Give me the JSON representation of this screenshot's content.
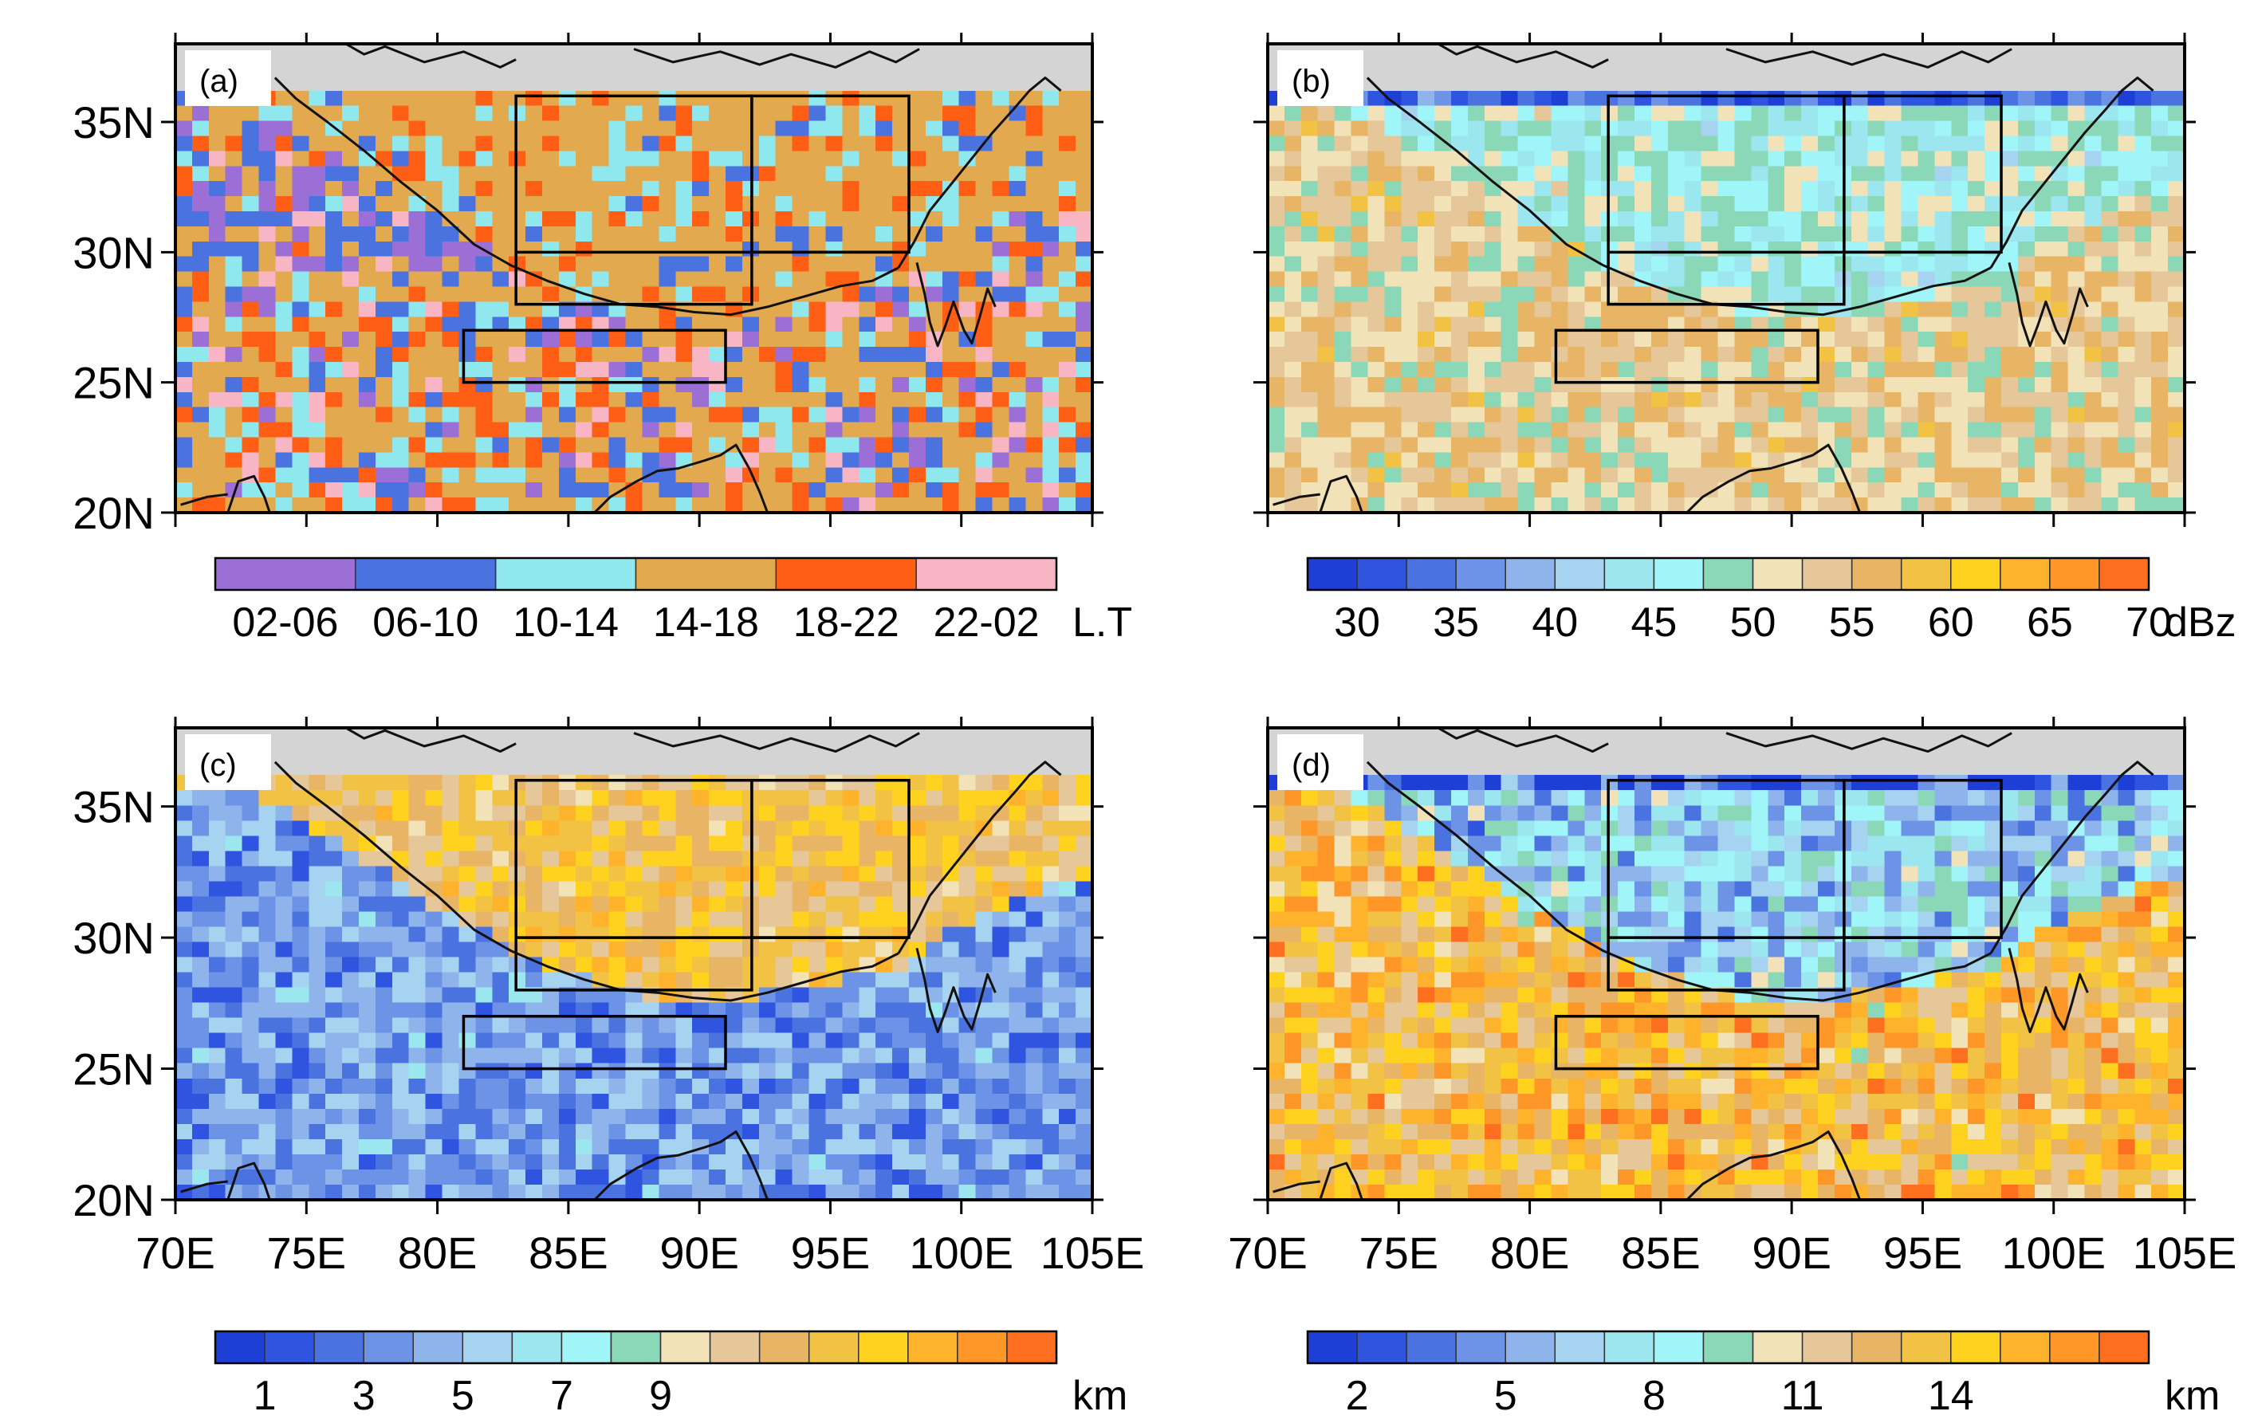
{
  "map_extent": {
    "lon": [
      70,
      105
    ],
    "lat": [
      20,
      38
    ]
  },
  "colors": {
    "land_outside": "#d4d4d4",
    "frame": "#000000",
    "coast": "#111111"
  },
  "boxes_lonlat": [
    {
      "lon": [
        83,
        92
      ],
      "lat": [
        28,
        36
      ]
    },
    {
      "lon": [
        92,
        98
      ],
      "lat": [
        30,
        36
      ]
    },
    {
      "lon": [
        83,
        98
      ],
      "lat": [
        30,
        30
      ]
    },
    {
      "lon": [
        81,
        91
      ],
      "lat": [
        25,
        27
      ]
    }
  ],
  "panels": [
    {
      "tag": "(a)",
      "lat_labels": [
        "35N",
        "30N",
        "25N",
        "20N"
      ],
      "lon_labels": [],
      "colorbar": {
        "unit": "L.T",
        "labels": [
          "02-06",
          "06-10",
          "10-14",
          "14-18",
          "18-22",
          "22-02"
        ],
        "label_mode": "centered",
        "colors": [
          "#9b6fd6",
          "#4a73e0",
          "#8fe8ee",
          "#e3a94f",
          "#ff5e14",
          "#f8b6c4"
        ]
      },
      "field": {
        "kind": "categorical",
        "base": [
          3,
          5,
          1,
          3
        ],
        "noise": 0.55
      }
    },
    {
      "tag": "(b)",
      "lat_labels": [],
      "lon_labels": [],
      "colorbar": {
        "unit": "dBz",
        "labels": [
          "30",
          "35",
          "40",
          "45",
          "50",
          "55",
          "60",
          "65",
          "70"
        ],
        "label_mode": "every_other_edge",
        "colors": [
          "#1d3fd6",
          "#2f55e0",
          "#4a73e0",
          "#6d93e6",
          "#8fb4ec",
          "#a6d4f0",
          "#9ce6f0",
          "#9ff5f7",
          "#8ad8b8",
          "#f2e2b8",
          "#e6c79a",
          "#e8b466",
          "#f2c245",
          "#ffd21f",
          "#ffb22c",
          "#ff9628",
          "#ff6f1f"
        ]
      },
      "field": {
        "kind": "graded",
        "plateau": 7.4,
        "lowland": 9.7,
        "north_edge": 1.5,
        "noise": 0.9
      }
    },
    {
      "tag": "(c)",
      "lat_labels": [
        "35N",
        "30N",
        "25N",
        "20N"
      ],
      "lon_labels": [
        "70E",
        "75E",
        "80E",
        "85E",
        "90E",
        "95E",
        "100E",
        "105E"
      ],
      "colorbar": {
        "unit": "km",
        "labels": [
          "1",
          "3",
          "5",
          "7",
          "9"
        ],
        "label_mode": "every_other_edge",
        "colors": [
          "#1d3fd6",
          "#2f55e0",
          "#4a73e0",
          "#6d93e6",
          "#8fb4ec",
          "#a6d4f0",
          "#9ce6f0",
          "#9ff5f7",
          "#8ad8b8",
          "#f2e2b8",
          "#e6c79a",
          "#e8b466",
          "#f2c245",
          "#ffd21f",
          "#ffb22c",
          "#ff9628",
          "#ff6f1f"
        ]
      },
      "field": {
        "kind": "graded",
        "plateau": 11.6,
        "lowland": 3.3,
        "north_edge": 11.0,
        "noise": 1.1
      }
    },
    {
      "tag": "(d)",
      "lat_labels": [],
      "lon_labels": [
        "70E",
        "75E",
        "80E",
        "85E",
        "90E",
        "95E",
        "100E",
        "105E"
      ],
      "colorbar": {
        "unit": "km",
        "labels": [
          "2",
          "5",
          "8",
          "11",
          "14"
        ],
        "label_mode": "every_third_edge",
        "colors": [
          "#1d3fd6",
          "#2f55e0",
          "#4a73e0",
          "#6d93e6",
          "#8fb4ec",
          "#a6d4f0",
          "#9ce6f0",
          "#9ff5f7",
          "#8ad8b8",
          "#f2e2b8",
          "#e6c79a",
          "#e8b466",
          "#f2c245",
          "#ffd21f",
          "#ffb22c",
          "#ff9628",
          "#ff6f1f"
        ]
      },
      "field": {
        "kind": "graded",
        "plateau": 5.2,
        "lowland": 12.3,
        "north_edge": 1.0,
        "noise": 1.6
      }
    }
  ]
}
